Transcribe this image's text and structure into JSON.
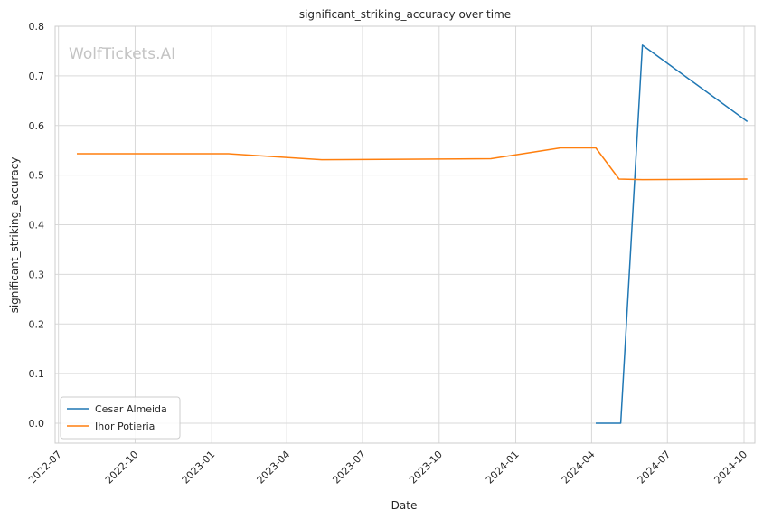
{
  "chart_data": {
    "type": "line",
    "title": "significant_striking_accuracy over time",
    "xlabel": "Date",
    "ylabel": "significant_striking_accuracy",
    "watermark": "WolfTickets.AI",
    "x_ticks": [
      "2022-07",
      "2022-10",
      "2023-01",
      "2023-04",
      "2023-07",
      "2023-10",
      "2024-01",
      "2024-04",
      "2024-07",
      "2024-10"
    ],
    "y_ticks": [
      "0.0",
      "0.1",
      "0.2",
      "0.3",
      "0.4",
      "0.5",
      "0.6",
      "0.7",
      "0.8"
    ],
    "xlim": [
      "2022-06-27",
      "2024-10-14"
    ],
    "ylim": [
      -0.04,
      0.8
    ],
    "grid": true,
    "legend_position": "lower-left",
    "series": [
      {
        "name": "Cesar Almeida",
        "color": "#1f77b4",
        "points": [
          {
            "x": "2024-04-06",
            "y": 0.0
          },
          {
            "x": "2024-05-06",
            "y": 0.0
          },
          {
            "x": "2024-06-01",
            "y": 0.762
          },
          {
            "x": "2024-10-05",
            "y": 0.608
          }
        ]
      },
      {
        "name": "Ihor Potieria",
        "color": "#ff7f0e",
        "points": [
          {
            "x": "2022-07-23",
            "y": 0.543
          },
          {
            "x": "2023-01-21",
            "y": 0.543
          },
          {
            "x": "2023-05-13",
            "y": 0.531
          },
          {
            "x": "2023-12-02",
            "y": 0.533
          },
          {
            "x": "2024-02-24",
            "y": 0.555
          },
          {
            "x": "2024-04-06",
            "y": 0.555
          },
          {
            "x": "2024-05-04",
            "y": 0.492
          },
          {
            "x": "2024-06-01",
            "y": 0.491
          },
          {
            "x": "2024-10-05",
            "y": 0.492
          }
        ]
      }
    ]
  }
}
